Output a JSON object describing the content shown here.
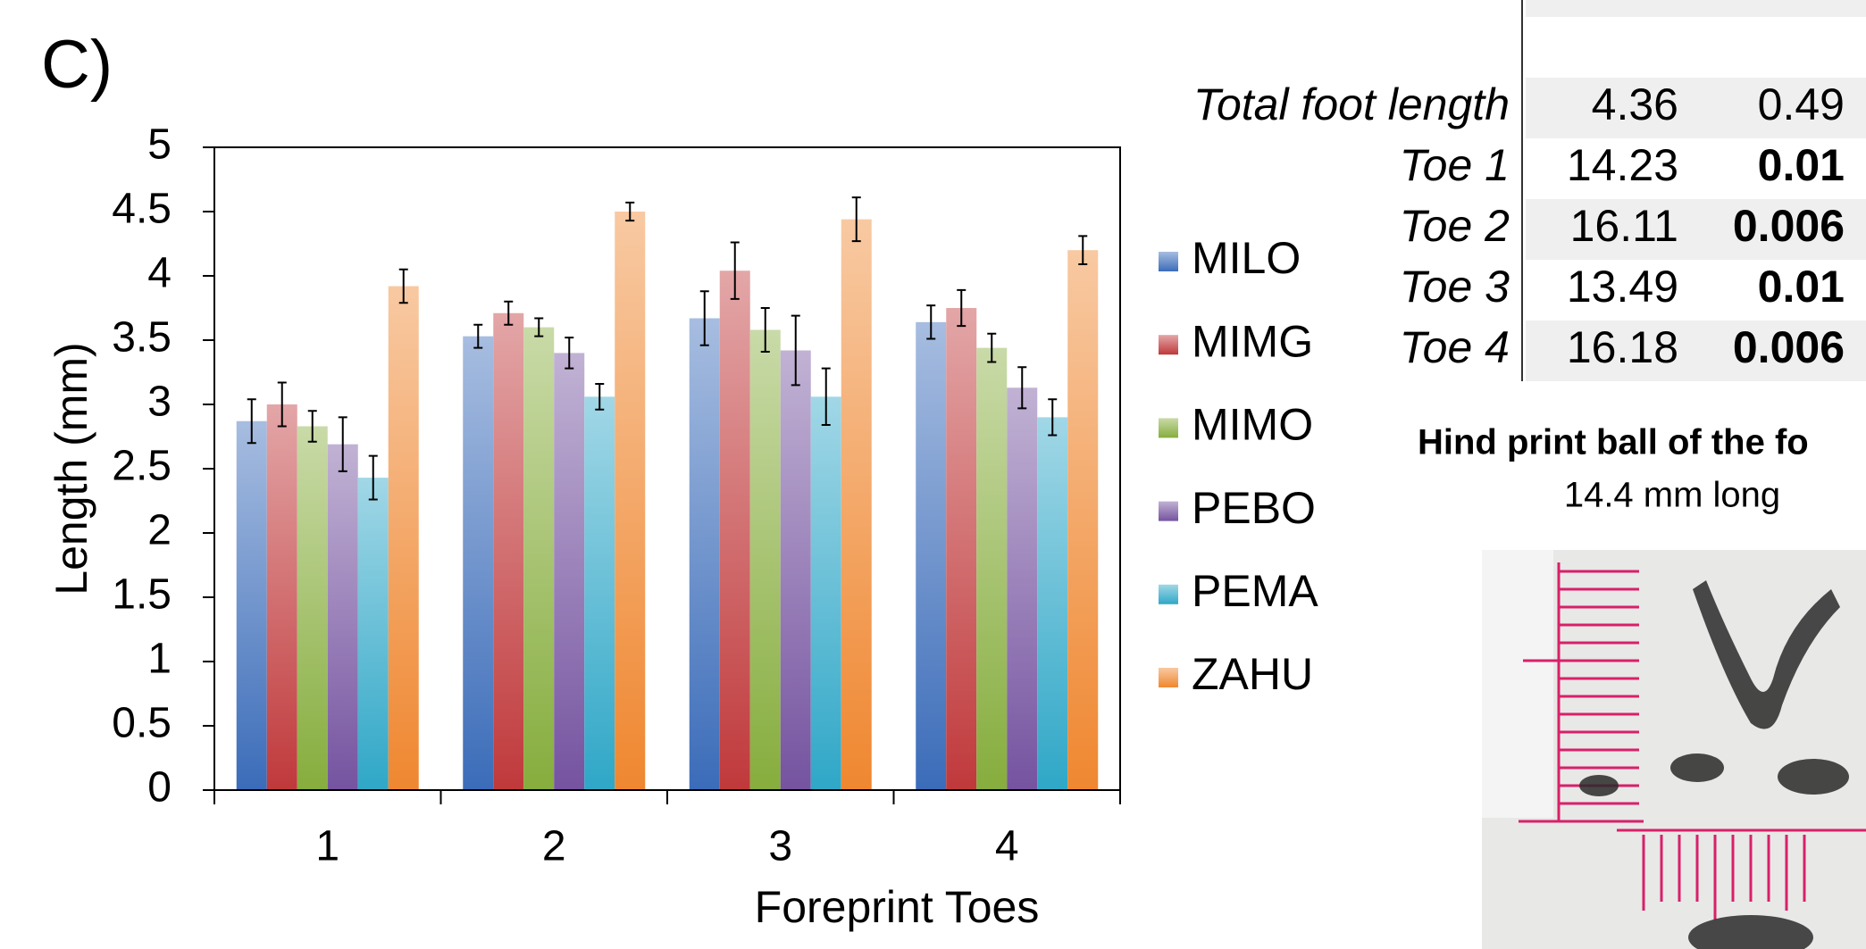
{
  "figure_label": "C)",
  "chart_data": {
    "type": "bar",
    "xlabel": "Foreprint Toes",
    "ylabel": "Length (mm)",
    "categories": [
      "1",
      "2",
      "3",
      "4"
    ],
    "ylim": [
      0,
      5
    ],
    "yticks": [
      0,
      0.5,
      1,
      1.5,
      2,
      2.5,
      3,
      3.5,
      4,
      4.5,
      5
    ],
    "series": [
      {
        "name": "MILO",
        "color": "#3b6cb9",
        "values": [
          2.87,
          3.53,
          3.67,
          3.64
        ],
        "errors": [
          0.17,
          0.09,
          0.21,
          0.13
        ]
      },
      {
        "name": "MIMG",
        "color": "#c0393b",
        "values": [
          3.0,
          3.71,
          4.04,
          3.75
        ],
        "errors": [
          0.17,
          0.09,
          0.22,
          0.14
        ]
      },
      {
        "name": "MIMO",
        "color": "#86ad3d",
        "values": [
          2.83,
          3.6,
          3.58,
          3.44
        ],
        "errors": [
          0.12,
          0.07,
          0.17,
          0.11
        ]
      },
      {
        "name": "PEBO",
        "color": "#7553a0",
        "values": [
          2.69,
          3.4,
          3.42,
          3.13
        ],
        "errors": [
          0.21,
          0.12,
          0.27,
          0.16
        ]
      },
      {
        "name": "PEMA",
        "color": "#2fa7c7",
        "values": [
          2.43,
          3.06,
          3.06,
          2.9
        ],
        "errors": [
          0.17,
          0.1,
          0.22,
          0.14
        ]
      },
      {
        "name": "ZAHU",
        "color": "#ef8730",
        "values": [
          3.92,
          4.5,
          4.44,
          4.2
        ],
        "errors": [
          0.13,
          0.07,
          0.17,
          0.11
        ]
      }
    ]
  },
  "table": {
    "rows": [
      [
        "Total foot length",
        "4.36",
        "0.49"
      ],
      [
        "Toe 1",
        "14.23",
        "0.01"
      ],
      [
        "Toe 2",
        "16.11",
        "0.006"
      ],
      [
        "Toe 3",
        "13.49",
        "0.01"
      ],
      [
        "Toe 4",
        "16.18",
        "0.006"
      ]
    ],
    "bold_last": [
      false,
      true,
      true,
      true,
      true
    ]
  },
  "photo": {
    "title": "Hind print ball of the fo",
    "subtitle": "14.4 mm long"
  }
}
